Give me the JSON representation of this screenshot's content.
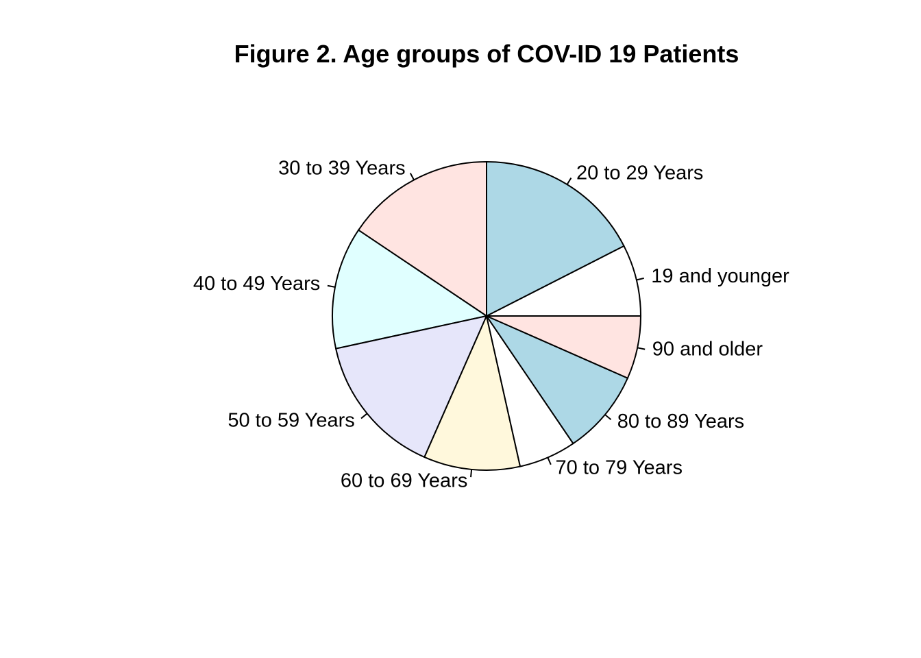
{
  "chart_data": {
    "type": "pie",
    "title": "Figure 2. Age groups of COV-ID 19 Patients",
    "start_angle_deg": 0,
    "direction": "counterclockwise",
    "slices": [
      {
        "label": "19 and younger",
        "value": 7.5,
        "color": "#ffffff"
      },
      {
        "label": "20 to 29 Years",
        "value": 17.5,
        "color": "#add8e6"
      },
      {
        "label": "30 to 39 Years",
        "value": 15.6,
        "color": "#ffe4e1"
      },
      {
        "label": "40 to 49 Years",
        "value": 12.8,
        "color": "#e0ffff"
      },
      {
        "label": "50 to 59 Years",
        "value": 15.0,
        "color": "#e6e6fa"
      },
      {
        "label": "60 to 69 Years",
        "value": 10.1,
        "color": "#fff8dc"
      },
      {
        "label": "70 to 79 Years",
        "value": 6.0,
        "color": "#ffffff"
      },
      {
        "label": "80 to 89 Years",
        "value": 8.9,
        "color": "#add8e6"
      },
      {
        "label": "90 and older",
        "value": 6.6,
        "color": "#ffe4e1"
      }
    ]
  }
}
